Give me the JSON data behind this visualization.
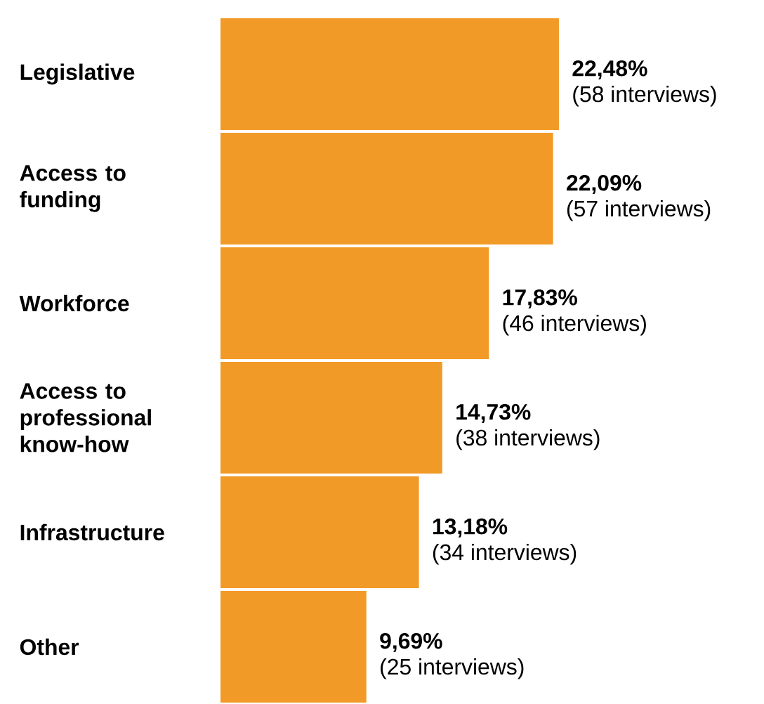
{
  "chart_data": {
    "type": "bar",
    "orientation": "horizontal",
    "color": "#f29a27",
    "categories": [
      "Legislative",
      "Access to funding",
      "Workforce",
      "Access to professional know-how",
      "Infrastructure",
      "Other"
    ],
    "values": [
      22.48,
      22.09,
      17.83,
      14.73,
      13.18,
      9.69
    ],
    "value_labels": [
      "22,48%",
      "22,09%",
      "17,83%",
      "14,73%",
      "13,18%",
      "9,69%"
    ],
    "annotations": [
      {
        "text": "(58 interviews)",
        "x": 22.48,
        "y": "Legislative"
      },
      {
        "text": "(57 interviews)",
        "x": 22.09,
        "y": "Access to funding"
      },
      {
        "text": "(46 interviews)",
        "x": 17.83,
        "y": "Workforce"
      },
      {
        "text": "(38 interviews)",
        "x": 14.73,
        "y": "Access to professional know-how"
      },
      {
        "text": "(34 interviews)",
        "x": 13.18,
        "y": "Infrastructure"
      },
      {
        "text": "(25 interviews)",
        "x": 9.69,
        "y": "Other"
      }
    ]
  }
}
